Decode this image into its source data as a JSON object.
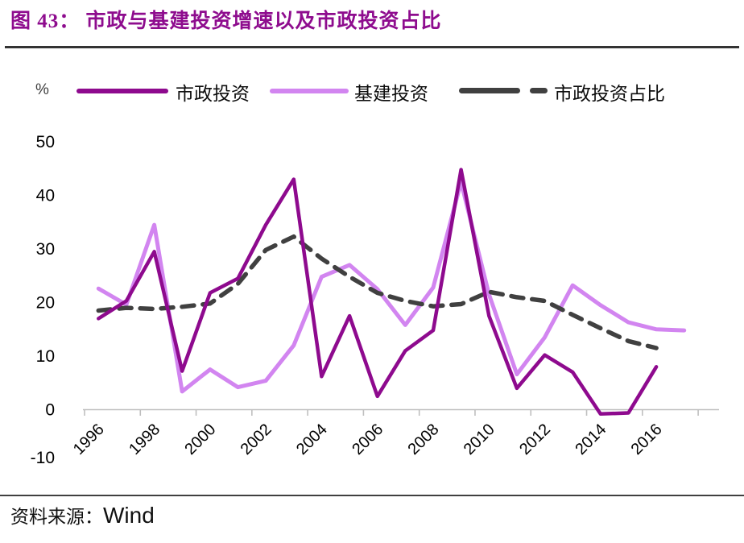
{
  "title": "图 43：  市政与基建投资增速以及市政投资占比",
  "theme": {
    "title_color": "#8E0C8E",
    "municipal_color": "#8E0A8E",
    "infrastructure_color": "#D285F0",
    "share_color": "#404040",
    "axis_color": "#BFBFBF",
    "label_color": "#000000"
  },
  "axes": {
    "unit_label": "%"
  },
  "footer": {
    "source_prefix": "资料来源：",
    "source_name": "Wind"
  },
  "chart_data": {
    "type": "line",
    "title": "市政与基建投资增速以及市政投资占比",
    "unit": "%",
    "grid": false,
    "legend_position": "top",
    "ylim": [
      -10,
      50
    ],
    "y_ticks": [
      50,
      40,
      30,
      20,
      10,
      0,
      -10
    ],
    "x_tick_labels": [
      "1996",
      "1998",
      "2000",
      "2002",
      "2004",
      "2006",
      "2008",
      "2010",
      "2012",
      "2014",
      "2016"
    ],
    "x": [
      1996,
      1997,
      1998,
      1999,
      2000,
      2001,
      2002,
      2003,
      2004,
      2005,
      2006,
      2007,
      2008,
      2009,
      2010,
      2011,
      2012,
      2013,
      2014,
      2015,
      2016,
      2017
    ],
    "series": [
      {
        "name": "市政投资",
        "color": "#8E0A8E",
        "style": "solid",
        "values": [
          17.0,
          20.3,
          29.5,
          7.2,
          21.8,
          24.5,
          34.5,
          43.0,
          6.2,
          17.5,
          2.5,
          11.0,
          14.8,
          44.8,
          17.5,
          4.0,
          10.2,
          7.0,
          -0.8,
          -0.6,
          8.0,
          null
        ]
      },
      {
        "name": "基建投资",
        "color": "#D285F0",
        "style": "solid",
        "values": [
          22.6,
          19.6,
          34.5,
          3.4,
          7.5,
          4.2,
          5.4,
          12.0,
          24.8,
          27.0,
          22.5,
          15.8,
          22.8,
          42.5,
          21.5,
          6.6,
          13.5,
          23.2,
          19.5,
          16.3,
          15.0,
          14.8
        ]
      },
      {
        "name": "市政投资占比",
        "color": "#404040",
        "style": "dashed",
        "values": [
          18.5,
          19.0,
          18.8,
          19.2,
          19.8,
          23.5,
          29.8,
          32.3,
          28.2,
          24.8,
          21.8,
          20.3,
          19.3,
          19.7,
          22.0,
          21.0,
          20.3,
          17.7,
          15.2,
          12.8,
          11.5,
          null
        ]
      }
    ]
  }
}
